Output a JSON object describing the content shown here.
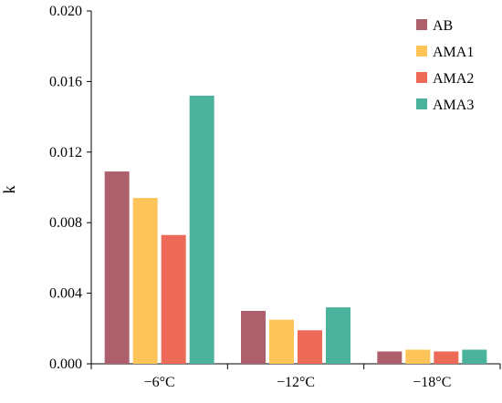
{
  "chart_data": {
    "type": "bar",
    "title": "",
    "xlabel": "",
    "ylabel": "k",
    "categories": [
      "−6°C",
      "−12°C",
      "−18°C"
    ],
    "series": [
      {
        "name": "AB",
        "color": "#ad5f6b",
        "values": [
          0.0109,
          0.003,
          0.0007
        ]
      },
      {
        "name": "AMA1",
        "color": "#fcc459",
        "values": [
          0.0094,
          0.0025,
          0.0008
        ]
      },
      {
        "name": "AMA2",
        "color": "#ec6a57",
        "values": [
          0.0073,
          0.0019,
          0.0007
        ]
      },
      {
        "name": "AMA3",
        "color": "#4bb29b",
        "values": [
          0.0152,
          0.0032,
          0.0008
        ]
      }
    ],
    "ylim": [
      0,
      0.02
    ],
    "yticks": [
      "0.000",
      "0.004",
      "0.008",
      "0.012",
      "0.016",
      "0.020"
    ],
    "grid": false,
    "legend_position": "top-right"
  }
}
